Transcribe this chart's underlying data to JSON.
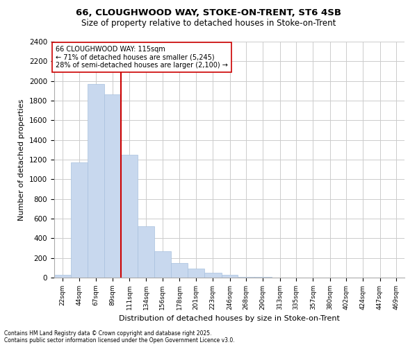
{
  "title_line1": "66, CLOUGHWOOD WAY, STOKE-ON-TRENT, ST6 4SB",
  "title_line2": "Size of property relative to detached houses in Stoke-on-Trent",
  "xlabel": "Distribution of detached houses by size in Stoke-on-Trent",
  "ylabel": "Number of detached properties",
  "annotation_line1": "66 CLOUGHWOOD WAY: 115sqm",
  "annotation_line2": "← 71% of detached houses are smaller (5,245)",
  "annotation_line3": "28% of semi-detached houses are larger (2,100) →",
  "categories": [
    "22sqm",
    "44sqm",
    "67sqm",
    "89sqm",
    "111sqm",
    "134sqm",
    "156sqm",
    "178sqm",
    "201sqm",
    "223sqm",
    "246sqm",
    "268sqm",
    "290sqm",
    "313sqm",
    "335sqm",
    "357sqm",
    "380sqm",
    "402sqm",
    "424sqm",
    "447sqm",
    "469sqm"
  ],
  "bin_left_edges": [
    22,
    44,
    67,
    89,
    111,
    134,
    156,
    178,
    201,
    223,
    246,
    268,
    290,
    313,
    335,
    357,
    380,
    402,
    424,
    447,
    469
  ],
  "bin_widths": [
    22,
    23,
    22,
    22,
    23,
    22,
    22,
    23,
    22,
    23,
    22,
    22,
    23,
    22,
    22,
    23,
    22,
    22,
    23,
    22,
    22
  ],
  "values": [
    30,
    1170,
    1970,
    1860,
    1250,
    520,
    270,
    150,
    90,
    50,
    30,
    10,
    5,
    3,
    2,
    2,
    1,
    1,
    1,
    0,
    0
  ],
  "bar_color": "#c8d8ee",
  "bar_edgecolor": "#a8c0de",
  "vline_color": "#cc0000",
  "vline_x": 111,
  "annotation_box_edgecolor": "#cc0000",
  "annotation_box_facecolor": "#ffffff",
  "ylim": [
    0,
    2400
  ],
  "yticks": [
    0,
    200,
    400,
    600,
    800,
    1000,
    1200,
    1400,
    1600,
    1800,
    2000,
    2200,
    2400
  ],
  "grid_color": "#cccccc",
  "plot_bg_color": "#ffffff",
  "fig_bg_color": "#ffffff",
  "footer_line1": "Contains HM Land Registry data © Crown copyright and database right 2025.",
  "footer_line2": "Contains public sector information licensed under the Open Government Licence v3.0."
}
